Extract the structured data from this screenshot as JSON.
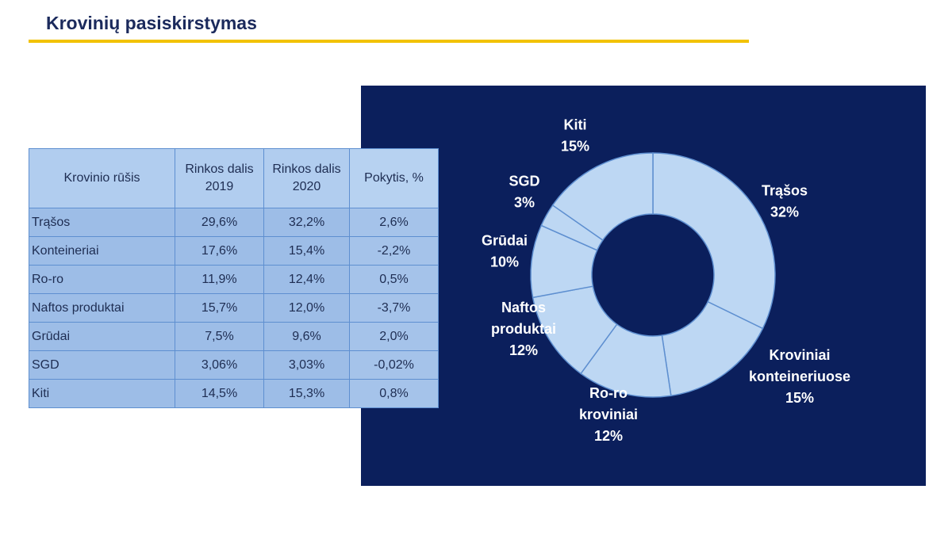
{
  "title": "Krovinių pasiskirstymas",
  "colors": {
    "accent": "#f2c200",
    "panel": "#0b1f5c",
    "donut_fill": "#bdd7f3",
    "donut_stroke": "#5e8fd0",
    "title": "#1b2a5c"
  },
  "table": {
    "headers": [
      "Krovinio rūšis",
      "Rinkos dalis 2019",
      "Rinkos dalis 2020",
      "Pokytis, %"
    ],
    "rows": [
      [
        "Trąšos",
        "29,6%",
        "32,2%",
        "2,6%"
      ],
      [
        "Konteineriai",
        "17,6%",
        "15,4%",
        "-2,2%"
      ],
      [
        "Ro-ro",
        "11,9%",
        "12,4%",
        "0,5%"
      ],
      [
        "Naftos produktai",
        "15,7%",
        "12,0%",
        "-3,7%"
      ],
      [
        "Grūdai",
        "7,5%",
        "9,6%",
        "2,0%"
      ],
      [
        "SGD",
        "3,06%",
        "3,03%",
        "-0,02%"
      ],
      [
        "Kiti",
        "14,5%",
        "15,3%",
        "0,8%"
      ]
    ]
  },
  "chart_data": [
    {
      "type": "table",
      "columns": [
        "Krovinio rūšis",
        "Rinkos dalis 2019",
        "Rinkos dalis 2020",
        "Pokytis, %"
      ],
      "rows": [
        [
          "Trąšos",
          "29,6%",
          "32,2%",
          "2,6%"
        ],
        [
          "Konteineriai",
          "17,6%",
          "15,4%",
          "-2,2%"
        ],
        [
          "Ro-ro",
          "11,9%",
          "12,4%",
          "0,5%"
        ],
        [
          "Naftos produktai",
          "15,7%",
          "12,0%",
          "-3,7%"
        ],
        [
          "Grūdai",
          "7,5%",
          "9,6%",
          "2,0%"
        ],
        [
          "SGD",
          "3,06%",
          "3,03%",
          "-0,02%"
        ],
        [
          "Kiti",
          "14,5%",
          "15,3%",
          "0,8%"
        ]
      ]
    },
    {
      "type": "pie",
      "donut": true,
      "slices": [
        {
          "label": [
            "Trąšos"
          ],
          "value": 32.2,
          "display": "32%"
        },
        {
          "label": [
            "Kroviniai",
            "konteineriuose"
          ],
          "value": 15.4,
          "display": "15%"
        },
        {
          "label": [
            "Ro-ro",
            "kroviniai"
          ],
          "value": 12.4,
          "display": "12%"
        },
        {
          "label": [
            "Naftos",
            "produktai"
          ],
          "value": 12.0,
          "display": "12%"
        },
        {
          "label": [
            "Grūdai"
          ],
          "value": 9.6,
          "display": "10%"
        },
        {
          "label": [
            "SGD"
          ],
          "value": 3.03,
          "display": "3%"
        },
        {
          "label": [
            "Kiti"
          ],
          "value": 15.3,
          "display": "15%"
        }
      ]
    }
  ]
}
